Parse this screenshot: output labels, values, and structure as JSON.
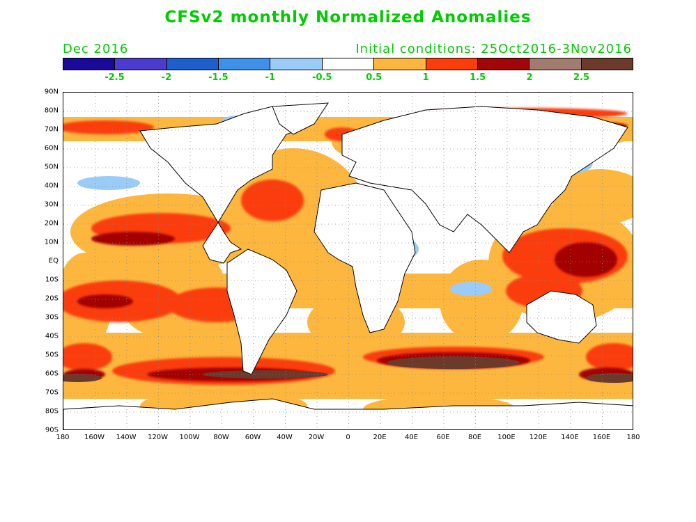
{
  "title": "CFSv2 monthly Normalized Anomalies",
  "month": "Dec 2016",
  "initial_conditions": "Initial conditions: 25Oct2016-3Nov2016",
  "colorbar": {
    "colors": [
      "#1a0a9a",
      "#4b3ccf",
      "#1e5fce",
      "#3d91e8",
      "#99ccf8",
      "#ffffff",
      "#fdb73f",
      "#fb3d0a",
      "#a30606",
      "#a17b6e",
      "#6b3a2a"
    ],
    "labels": [
      "-2.5",
      "-2",
      "-1.5",
      "-1",
      "-0.5",
      "0.5",
      "1",
      "1.5",
      "2",
      "2.5"
    ]
  },
  "lat_labels": [
    "90N",
    "80N",
    "70N",
    "60N",
    "50N",
    "40N",
    "30N",
    "20N",
    "10N",
    "EQ",
    "10S",
    "20S",
    "30S",
    "40S",
    "50S",
    "60S",
    "70S",
    "80S",
    "90S"
  ],
  "lon_labels": [
    "180",
    "160W",
    "140W",
    "120W",
    "100W",
    "80W",
    "60W",
    "40W",
    "20W",
    "0",
    "20E",
    "40E",
    "60E",
    "80E",
    "100E",
    "120E",
    "140E",
    "160E",
    "180"
  ]
}
